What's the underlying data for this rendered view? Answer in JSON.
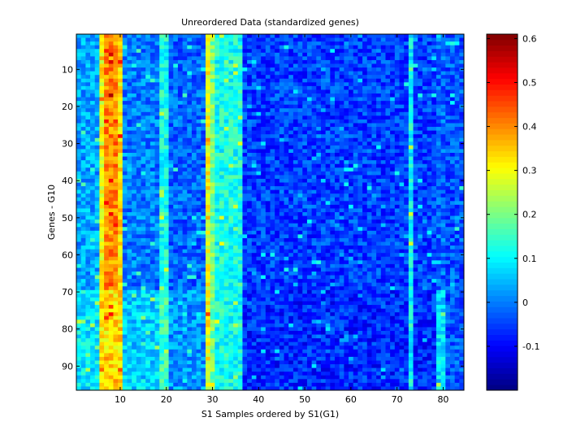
{
  "chart_data": {
    "type": "heatmap",
    "title": "Unreordered Data (standardized genes)",
    "xlabel": "S1 Samples ordered by S1(G1)",
    "ylabel": "Genes - G10",
    "n_cols": 84,
    "n_rows": 96,
    "xlim": [
      0.5,
      84.5
    ],
    "ylim": [
      0.5,
      96.5
    ],
    "y_reversed": true,
    "x_ticks": [
      10,
      20,
      30,
      40,
      50,
      60,
      70,
      80
    ],
    "y_ticks": [
      10,
      20,
      30,
      40,
      50,
      60,
      70,
      80,
      90
    ],
    "x_tick_labels": [
      "10",
      "20",
      "30",
      "40",
      "50",
      "60",
      "70",
      "80"
    ],
    "y_tick_labels": [
      "10",
      "20",
      "30",
      "40",
      "50",
      "60",
      "70",
      "80",
      "90"
    ],
    "colormap": "jet",
    "color_range": [
      -0.2,
      0.61
    ],
    "colorbar_ticks": [
      -0.1,
      0,
      0.1,
      0.2,
      0.3,
      0.4,
      0.5,
      0.6
    ],
    "colorbar_tick_labels": [
      "-0.1",
      "0",
      "0.1",
      "0.2",
      "0.3",
      "0.4",
      "0.5",
      "0.6"
    ],
    "column_profile": [
      {
        "cols": [
          1,
          5
        ],
        "value": 0.03,
        "value_rows_70_96": 0.09
      },
      {
        "cols": [
          6,
          6
        ],
        "value": 0.3,
        "value_rows_70_96": 0.33
      },
      {
        "cols": [
          7,
          9
        ],
        "value": 0.4,
        "value_rows_70_96": 0.33
      },
      {
        "cols": [
          10,
          10
        ],
        "value": 0.33,
        "value_rows_70_96": 0.33
      },
      {
        "cols": [
          11,
          18
        ],
        "value": 0.0,
        "value_rows_70_96": 0.07
      },
      {
        "cols": [
          19,
          20
        ],
        "value": 0.12,
        "value_rows_70_96": 0.15
      },
      {
        "cols": [
          21,
          28
        ],
        "value": -0.02,
        "value_rows_70_96": 0.02
      },
      {
        "cols": [
          29,
          29
        ],
        "value": 0.3,
        "value_rows_70_96": 0.3
      },
      {
        "cols": [
          30,
          30
        ],
        "value": 0.2,
        "value_rows_70_96": 0.2
      },
      {
        "cols": [
          31,
          36
        ],
        "value": 0.12,
        "value_rows_70_96": 0.12
      },
      {
        "cols": [
          37,
          72
        ],
        "value": -0.05,
        "value_rows_70_96": -0.07
      },
      {
        "cols": [
          73,
          73
        ],
        "value": 0.1,
        "value_rows_70_96": 0.1
      },
      {
        "cols": [
          74,
          78
        ],
        "value": -0.05,
        "value_rows_70_96": -0.07
      },
      {
        "cols": [
          79,
          80
        ],
        "value": -0.02,
        "value_rows_70_96": 0.08
      },
      {
        "cols": [
          81,
          84
        ],
        "value": -0.03,
        "value_rows_70_96": -0.03
      }
    ]
  }
}
